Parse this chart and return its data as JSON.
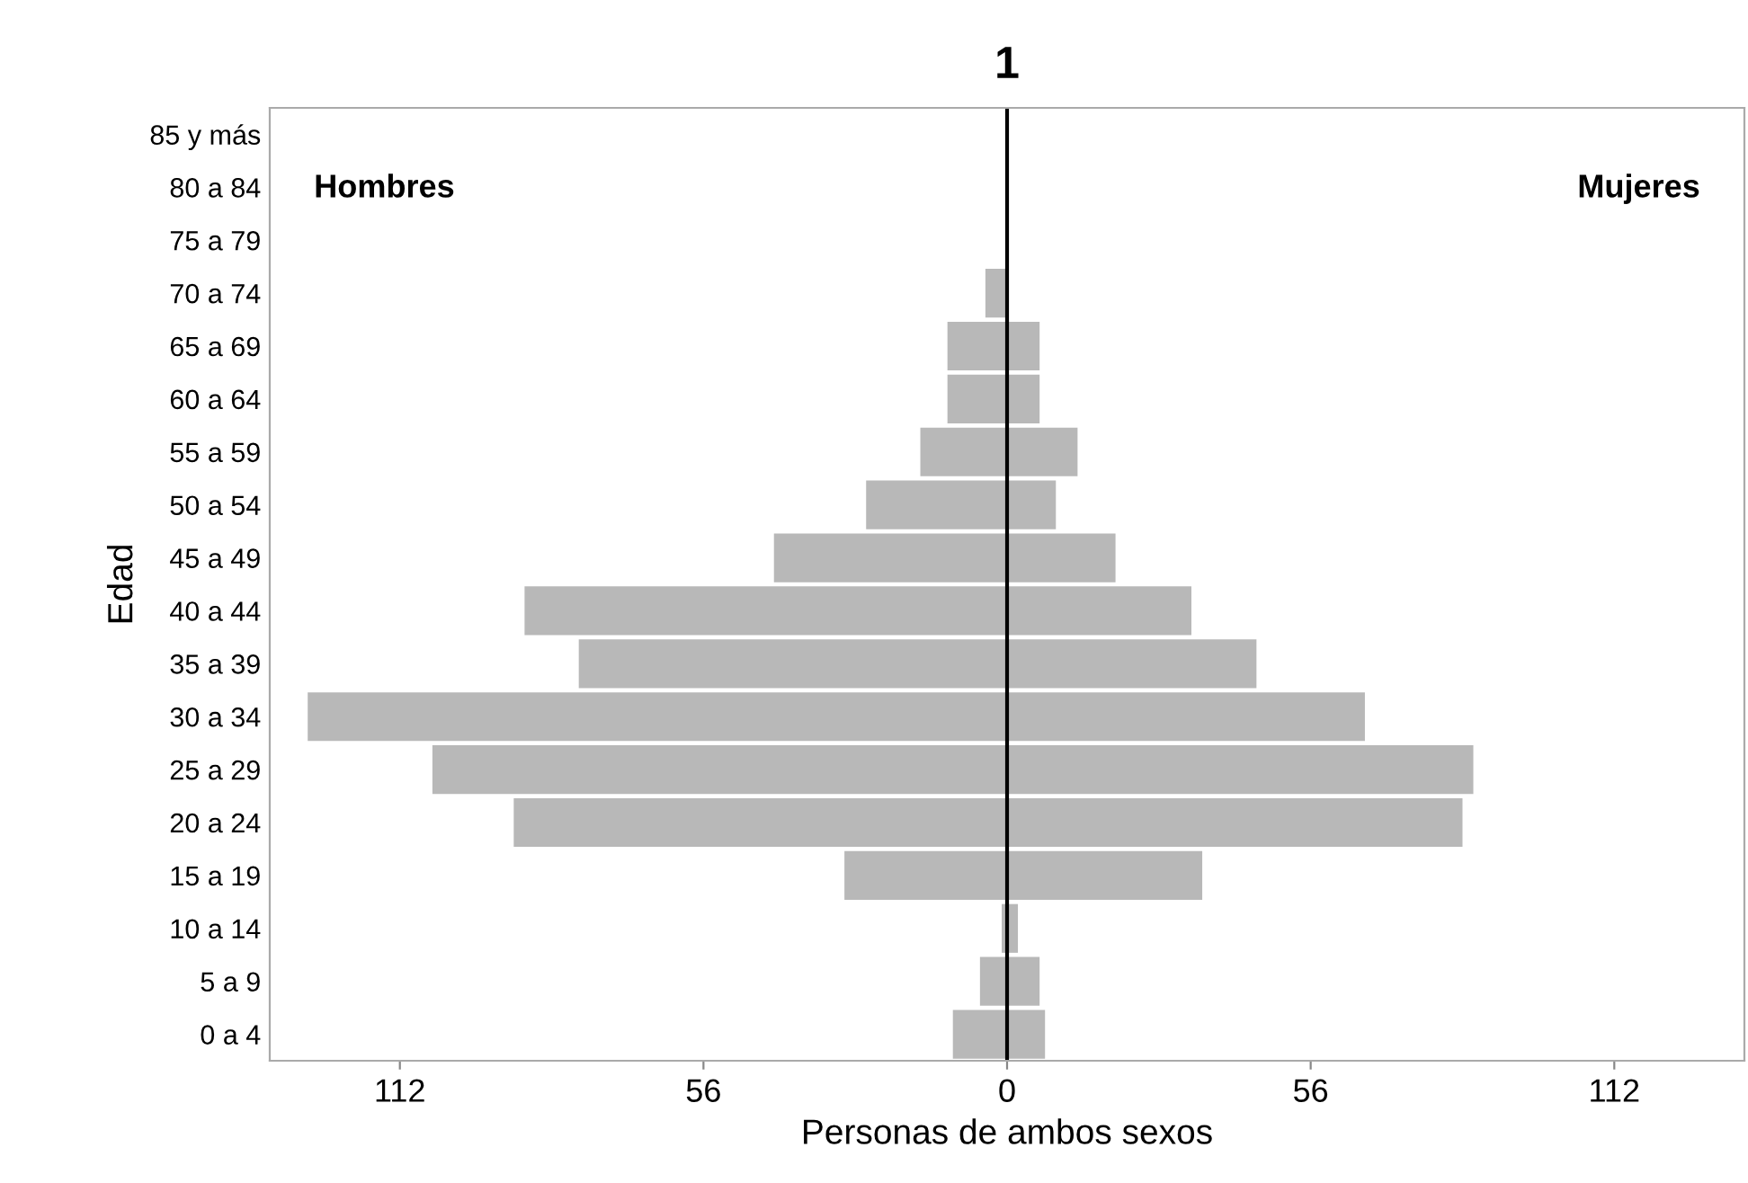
{
  "chart_data": {
    "type": "bar",
    "orientation": "horizontal",
    "title": "1",
    "xlabel": "Personas de ambos sexos",
    "ylabel": "Edad",
    "categories": [
      "85 y más",
      "80 a 84",
      "75 a 79",
      "70 a 74",
      "65 a 69",
      "60 a 64",
      "55 a 59",
      "50 a 54",
      "45 a 49",
      "40 a 44",
      "35 a 39",
      "30 a 34",
      "25 a 29",
      "20 a 24",
      "15 a 19",
      "10 a 14",
      "5 a 9",
      "0 a 4"
    ],
    "series": [
      {
        "color": "#b8b8b8",
        "values": [
          0,
          0,
          0,
          -4,
          -11,
          -11,
          -16,
          -26,
          -43,
          -89,
          -79,
          -129,
          -106,
          -91,
          -30,
          -1,
          -5,
          -10
        ]
      },
      {
        "color": "#b8b8b8",
        "values": [
          0,
          0,
          0,
          0,
          6,
          6,
          13,
          9,
          20,
          34,
          46,
          66,
          86,
          84,
          36,
          2,
          6,
          7
        ]
      }
    ],
    "xlim": [
      -136,
      136
    ],
    "xticks": [
      {
        "value": -112,
        "label": "112"
      },
      {
        "value": -56,
        "label": "56"
      },
      0,
      56,
      112
    ],
    "ref_lines": [
      {
        "axis": "x",
        "value": 0,
        "color": "#000000"
      }
    ],
    "annotations": [
      "Hombres",
      "Mujeres"
    ],
    "stacked": true,
    "grid": false,
    "legend": false
  }
}
